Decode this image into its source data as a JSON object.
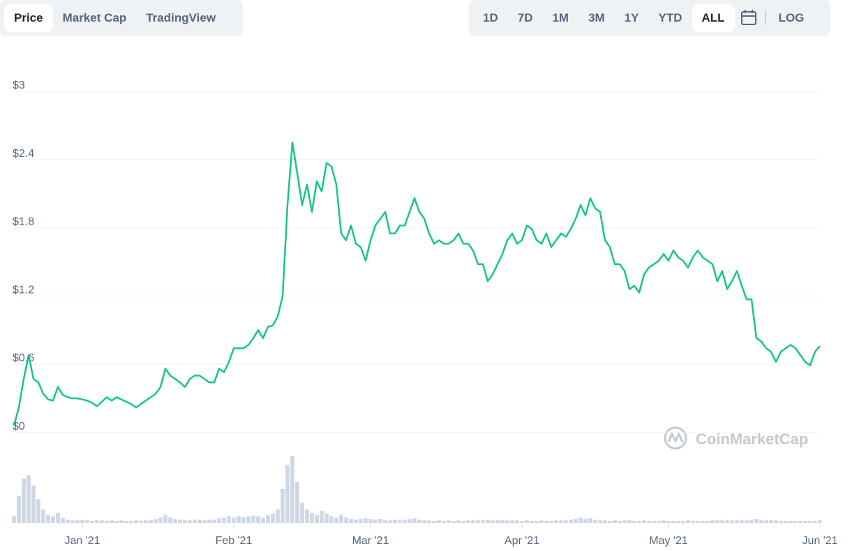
{
  "tabs": [
    "Price",
    "Market Cap",
    "TradingView"
  ],
  "ranges": [
    "1D",
    "7D",
    "1M",
    "3M",
    "1Y",
    "YTD",
    "ALL"
  ],
  "scale_toggle": "LOG",
  "watermark": "CoinMarketCap",
  "chart_data": [
    {
      "type": "line",
      "color": "#16c784",
      "grid": true,
      "categories": [
        null,
        null,
        null,
        null,
        null,
        null,
        null,
        null,
        null,
        null,
        null,
        null,
        null,
        null,
        "Jan '21",
        null,
        null,
        null,
        null,
        null,
        null,
        null,
        null,
        null,
        null,
        null,
        null,
        null,
        null,
        null,
        null,
        null,
        null,
        null,
        null,
        null,
        null,
        null,
        null,
        null,
        null,
        null,
        null,
        null,
        null,
        "Feb '21",
        null,
        null,
        null,
        null,
        null,
        null,
        null,
        null,
        null,
        null,
        null,
        null,
        null,
        null,
        null,
        null,
        null,
        null,
        null,
        null,
        null,
        null,
        null,
        null,
        null,
        null,
        null,
        "Mar '21",
        null,
        null,
        null,
        null,
        null,
        null,
        null,
        null,
        null,
        null,
        null,
        null,
        null,
        null,
        null,
        null,
        null,
        null,
        null,
        null,
        null,
        null,
        null,
        null,
        null,
        null,
        null,
        null,
        null,
        null,
        "Apr '21",
        null,
        null,
        null,
        null,
        null,
        null,
        null,
        null,
        null,
        null,
        null,
        null,
        null,
        null,
        null,
        null,
        null,
        null,
        null,
        null,
        null,
        null,
        null,
        null,
        null,
        null,
        null,
        null,
        null,
        "May '21",
        null,
        null,
        null,
        null,
        null,
        null,
        null,
        null,
        null,
        null,
        null,
        null,
        null,
        null,
        null,
        null,
        null,
        null,
        null,
        null,
        null,
        null,
        null,
        null,
        null,
        null,
        null,
        null,
        null,
        null,
        "Jun '21"
      ],
      "values": [
        0.06,
        0.22,
        0.47,
        0.68,
        0.47,
        0.44,
        0.34,
        0.29,
        0.28,
        0.4,
        0.33,
        0.31,
        0.3,
        0.3,
        0.29,
        0.28,
        0.26,
        0.23,
        0.27,
        0.31,
        0.28,
        0.31,
        0.29,
        0.27,
        0.25,
        0.22,
        0.25,
        0.28,
        0.31,
        0.34,
        0.4,
        0.56,
        0.5,
        0.47,
        0.44,
        0.4,
        0.47,
        0.5,
        0.5,
        0.47,
        0.44,
        0.44,
        0.56,
        0.53,
        0.62,
        0.74,
        0.74,
        0.74,
        0.77,
        0.83,
        0.9,
        0.83,
        0.93,
        0.94,
        1.02,
        1.2,
        2.0,
        2.55,
        2.28,
        2.0,
        2.18,
        1.94,
        2.21,
        2.12,
        2.37,
        2.34,
        2.18,
        1.75,
        1.69,
        1.82,
        1.66,
        1.63,
        1.51,
        1.69,
        1.82,
        1.88,
        1.94,
        1.75,
        1.75,
        1.82,
        1.82,
        1.94,
        2.06,
        1.94,
        1.88,
        1.75,
        1.66,
        1.69,
        1.66,
        1.66,
        1.69,
        1.75,
        1.66,
        1.66,
        1.6,
        1.48,
        1.48,
        1.33,
        1.39,
        1.48,
        1.57,
        1.69,
        1.75,
        1.66,
        1.69,
        1.82,
        1.79,
        1.69,
        1.66,
        1.75,
        1.63,
        1.69,
        1.75,
        1.72,
        1.79,
        1.88,
        2.0,
        1.91,
        2.06,
        1.97,
        1.94,
        1.69,
        1.63,
        1.48,
        1.48,
        1.42,
        1.26,
        1.29,
        1.23,
        1.39,
        1.45,
        1.48,
        1.51,
        1.57,
        1.51,
        1.6,
        1.54,
        1.51,
        1.45,
        1.54,
        1.6,
        1.54,
        1.51,
        1.48,
        1.33,
        1.42,
        1.26,
        1.33,
        1.42,
        1.29,
        1.17,
        1.17,
        0.83,
        0.8,
        0.74,
        0.71,
        0.62,
        0.71,
        0.74,
        0.77,
        0.74,
        0.68,
        0.62,
        0.59,
        0.71,
        0.76
      ],
      "ylim": [
        0,
        3
      ],
      "yticks": [
        {
          "value": 0,
          "label": "$0"
        },
        {
          "value": 0.6,
          "label": "$0.6"
        },
        {
          "value": 1.2,
          "label": "$1.2"
        },
        {
          "value": 1.8,
          "label": "$1.8"
        },
        {
          "value": 2.4,
          "label": "$2.4"
        },
        {
          "value": 3,
          "label": "$3"
        }
      ]
    },
    {
      "type": "bar",
      "color": "#cfd6e4",
      "values": [
        10,
        40,
        65,
        70,
        55,
        35,
        20,
        12,
        10,
        15,
        8,
        5,
        4,
        4,
        5,
        4,
        3,
        4,
        4,
        3,
        4,
        3,
        4,
        3,
        3,
        4,
        3,
        4,
        5,
        6,
        8,
        12,
        8,
        6,
        5,
        5,
        4,
        5,
        5,
        4,
        5,
        5,
        7,
        8,
        10,
        8,
        10,
        9,
        10,
        11,
        10,
        8,
        12,
        14,
        20,
        50,
        85,
        98,
        60,
        30,
        20,
        15,
        12,
        18,
        14,
        10,
        8,
        12,
        8,
        6,
        5,
        6,
        7,
        6,
        5,
        6,
        5,
        4,
        5,
        4,
        5,
        6,
        7,
        5,
        4,
        4,
        3,
        4,
        3,
        4,
        3,
        4,
        3,
        4,
        4,
        5,
        4,
        5,
        4,
        4,
        5,
        4,
        4,
        4,
        3,
        4,
        3,
        3,
        4,
        3,
        3,
        4,
        4,
        4,
        5,
        6,
        8,
        6,
        7,
        5,
        4,
        4,
        3,
        4,
        3,
        4,
        4,
        3,
        3,
        4,
        3,
        3,
        3,
        4,
        3,
        3,
        3,
        3,
        4,
        3,
        3,
        3,
        3,
        4,
        4,
        5,
        4,
        4,
        5,
        4,
        4,
        5,
        6,
        5,
        4,
        4,
        4,
        3,
        3,
        3,
        3,
        3,
        3,
        3,
        3,
        4
      ],
      "ylim": [
        0,
        100
      ]
    }
  ]
}
